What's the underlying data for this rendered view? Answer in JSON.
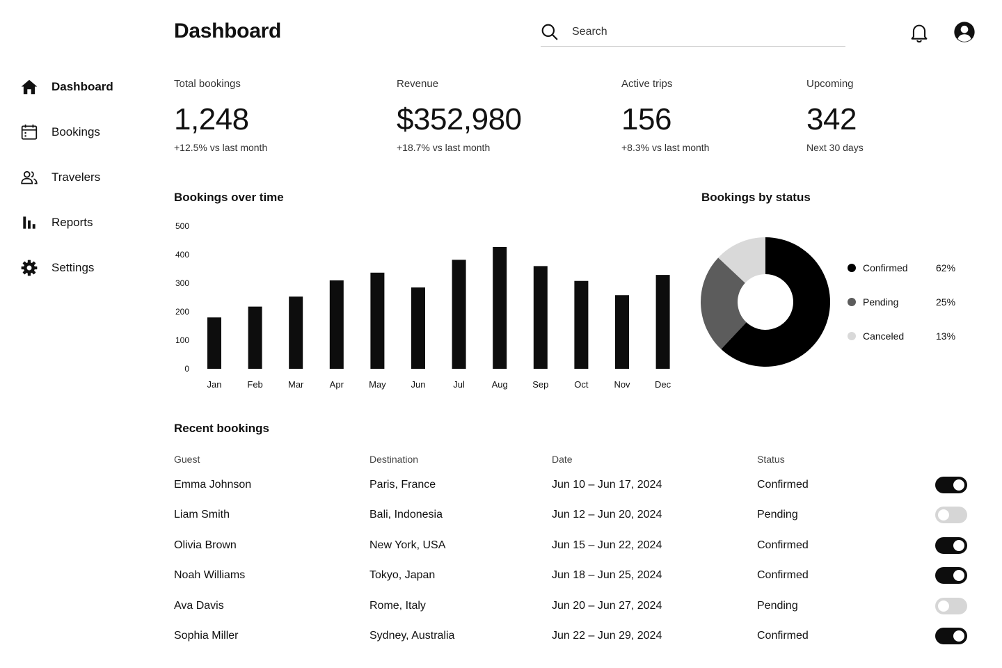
{
  "colors": {
    "primary": "#0d0d0d",
    "confirmed": "#000000",
    "pending": "#5c5c5c",
    "canceled": "#d9d9d9",
    "toggle_off": "#d6d6d6"
  },
  "sidebar": {
    "items": [
      {
        "label": "Dashboard",
        "icon": "home-icon",
        "active": true
      },
      {
        "label": "Bookings",
        "icon": "calendar-icon",
        "active": false
      },
      {
        "label": "Travelers",
        "icon": "users-icon",
        "active": false
      },
      {
        "label": "Reports",
        "icon": "bar-chart-icon",
        "active": false
      },
      {
        "label": "Settings",
        "icon": "gear-icon",
        "active": false
      }
    ]
  },
  "header": {
    "title": "Dashboard",
    "search_placeholder": "Search",
    "notification_icon": "bell-icon",
    "account_icon": "user-circle-icon"
  },
  "stats": [
    {
      "label": "Total bookings",
      "value": "1,248",
      "sub": "+12.5% vs last month"
    },
    {
      "label": "Revenue",
      "value": "$352,980",
      "sub": "+18.7% vs last month"
    },
    {
      "label": "Active trips",
      "value": "156",
      "sub": "+8.3% vs last month"
    },
    {
      "label": "Upcoming",
      "value": "342",
      "sub": "Next 30 days"
    }
  ],
  "chart_data": [
    {
      "type": "bar",
      "title": "Bookings over time",
      "categories": [
        "Jan",
        "Feb",
        "Mar",
        "Apr",
        "May",
        "Jun",
        "Jul",
        "Aug",
        "Sep",
        "Oct",
        "Nov",
        "Dec"
      ],
      "values": [
        180,
        218,
        253,
        310,
        337,
        285,
        382,
        427,
        360,
        308,
        258,
        329
      ],
      "ylim": [
        0,
        500
      ],
      "yticks": [
        "0",
        "100",
        "200",
        "300",
        "400",
        "500"
      ],
      "grid": false
    },
    {
      "type": "pie",
      "title": "Bookings by status",
      "donut": true,
      "legend": "right",
      "slices": [
        {
          "label": "Confirmed",
          "value": 62,
          "display": "62%"
        },
        {
          "label": "Pending",
          "value": 25,
          "display": "25%"
        },
        {
          "label": "Canceled",
          "value": 13,
          "display": "13%"
        }
      ]
    }
  ],
  "recent": {
    "title": "Recent bookings",
    "columns": [
      "Guest",
      "Destination",
      "Date",
      "Status"
    ],
    "rows": [
      {
        "guest": "Emma Johnson",
        "destination": "Paris, France",
        "date": "Jun 10 – Jun 17, 2024",
        "status": "Confirmed",
        "toggle": true
      },
      {
        "guest": "Liam Smith",
        "destination": "Bali, Indonesia",
        "date": "Jun 12 – Jun 20, 2024",
        "status": "Pending",
        "toggle": false
      },
      {
        "guest": "Olivia Brown",
        "destination": "New York, USA",
        "date": "Jun 15 – Jun 22, 2024",
        "status": "Confirmed",
        "toggle": true
      },
      {
        "guest": "Noah Williams",
        "destination": "Tokyo, Japan",
        "date": "Jun 18 – Jun 25, 2024",
        "status": "Confirmed",
        "toggle": true
      },
      {
        "guest": "Ava Davis",
        "destination": "Rome, Italy",
        "date": "Jun 20 – Jun 27, 2024",
        "status": "Pending",
        "toggle": false
      },
      {
        "guest": "Sophia Miller",
        "destination": "Sydney, Australia",
        "date": "Jun 22 – Jun 29, 2024",
        "status": "Confirmed",
        "toggle": true
      }
    ]
  }
}
